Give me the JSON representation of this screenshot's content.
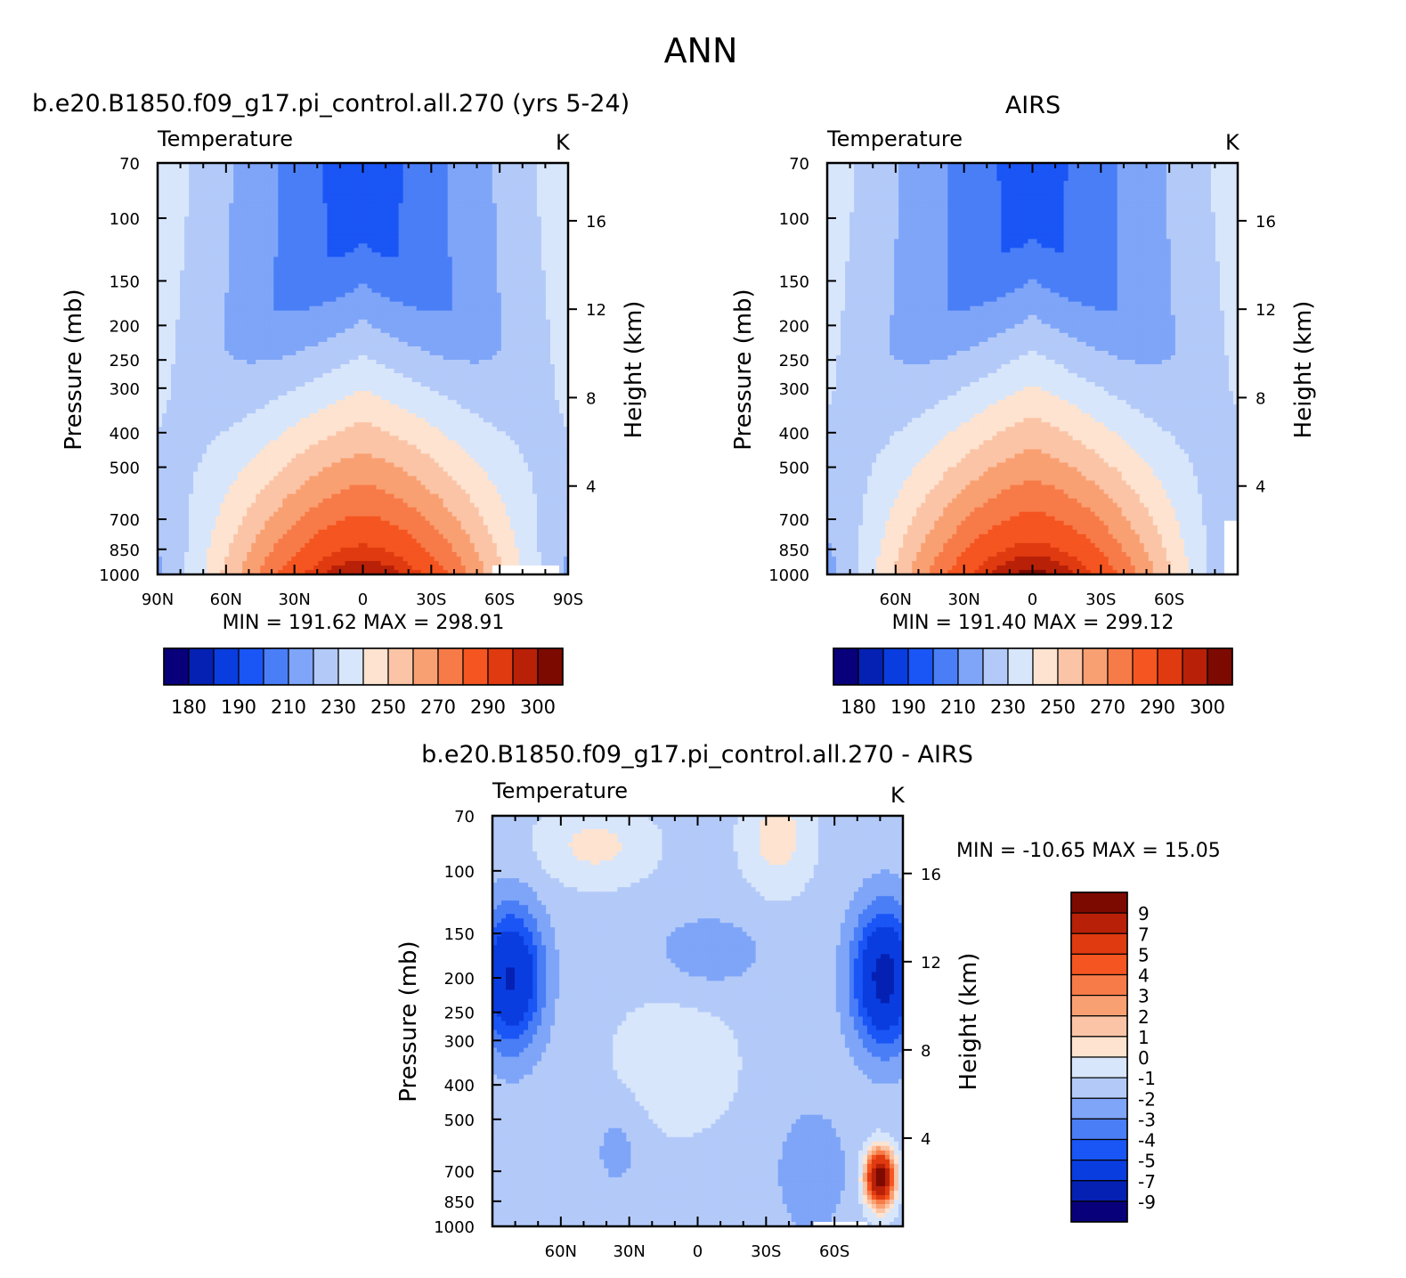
{
  "figure": {
    "title": "ANN"
  },
  "panels": {
    "top_left": {
      "case_title": "b.e20.B1850.f09_g17.pi_control.all.270 (yrs 5-24)",
      "left_string": "Temperature",
      "right_string": "K",
      "ylabel": "Pressure (mb)",
      "y2label": "Height (km)",
      "stats": "MIN = 191.62   MAX = 298.91"
    },
    "top_right": {
      "case_title": "AIRS",
      "left_string": "Temperature",
      "right_string": "K",
      "ylabel": "Pressure (mb)",
      "y2label": "Height (km)",
      "stats": "MIN = 191.40   MAX = 299.12"
    },
    "bottom": {
      "case_title": "b.e20.B1850.f09_g17.pi_control.all.270 - AIRS",
      "left_string": "Temperature",
      "right_string": "K",
      "ylabel": "Pressure (mb)",
      "y2label": "Height (km)",
      "stats": "MIN = -10.65   MAX =  15.05"
    }
  },
  "chart_data": [
    {
      "type": "heatmap",
      "title": "Temperature",
      "units": "K",
      "x_ticks": [
        "90N",
        "60N",
        "30N",
        "0",
        "30S",
        "60S",
        "90S"
      ],
      "y_ticks": [
        70,
        100,
        150,
        200,
        250,
        300,
        400,
        500,
        700,
        850,
        1000
      ],
      "y2_ticks": [
        16,
        12,
        8,
        4
      ],
      "ylim": [
        1000,
        70
      ],
      "y_scale": "log",
      "xlim": [
        "90N",
        "90S"
      ],
      "levels": [
        180,
        185,
        190,
        200,
        210,
        220,
        230,
        240,
        250,
        260,
        270,
        280,
        290,
        295,
        300
      ],
      "colorbar_labels": [
        "180",
        "190",
        "210",
        "230",
        "250",
        "270",
        "290",
        "300"
      ],
      "min": 191.62,
      "max": 298.91
    },
    {
      "type": "heatmap",
      "title": "Temperature",
      "units": "K",
      "x_ticks": [
        "60N",
        "30N",
        "0",
        "30S",
        "60S"
      ],
      "y_ticks": [
        70,
        100,
        150,
        200,
        250,
        300,
        400,
        500,
        700,
        850,
        1000
      ],
      "y2_ticks": [
        16,
        12,
        8,
        4
      ],
      "ylim": [
        1000,
        70
      ],
      "y_scale": "log",
      "levels": [
        180,
        185,
        190,
        200,
        210,
        220,
        230,
        240,
        250,
        260,
        270,
        280,
        290,
        295,
        300
      ],
      "colorbar_labels": [
        "180",
        "190",
        "210",
        "230",
        "250",
        "270",
        "290",
        "300"
      ],
      "min": 191.4,
      "max": 299.12
    },
    {
      "type": "heatmap",
      "title": "Temperature",
      "units": "K",
      "x_ticks": [
        "60N",
        "30N",
        "0",
        "30S",
        "60S"
      ],
      "y_ticks": [
        70,
        100,
        150,
        200,
        250,
        300,
        400,
        500,
        700,
        850,
        1000
      ],
      "y2_ticks": [
        16,
        12,
        8,
        4
      ],
      "ylim": [
        1000,
        70
      ],
      "y_scale": "log",
      "levels": [
        -9,
        -7,
        -5,
        -4,
        -3,
        -2,
        -1,
        0,
        1,
        2,
        3,
        4,
        5,
        7,
        9
      ],
      "colorbar_labels": [
        "9",
        "7",
        "5",
        "4",
        "3",
        "2",
        "1",
        "0",
        "-1",
        "-2",
        "-3",
        "-4",
        "-5",
        "-7",
        "-9"
      ],
      "min": -10.65,
      "max": 15.05
    }
  ],
  "colors": {
    "temperature_palette": [
      "#08007a",
      "#0521b3",
      "#0a3de0",
      "#1a55f5",
      "#4a7ef7",
      "#7ea5f8",
      "#b3caf9",
      "#d8e6fb",
      "#fde3d0",
      "#fbc4a6",
      "#f9a072",
      "#f77b48",
      "#f55520",
      "#e03a10",
      "#b82008",
      "#7d0a00"
    ],
    "difference_palette": [
      "#08007a",
      "#0521b3",
      "#0a3de0",
      "#1a55f5",
      "#4a7ef7",
      "#7ea5f8",
      "#b3caf9",
      "#d8e6fb",
      "#fde3d0",
      "#fbc4a6",
      "#f9a072",
      "#f77b48",
      "#f55520",
      "#e03a10",
      "#b82008",
      "#7d0a00"
    ]
  }
}
